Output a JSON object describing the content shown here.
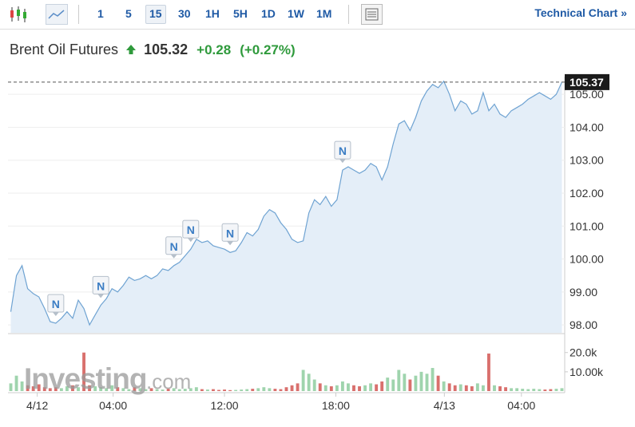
{
  "toolbar": {
    "intervals": [
      "1",
      "5",
      "15",
      "30",
      "1H",
      "5H",
      "1D",
      "1W",
      "1M"
    ],
    "selected_index": 2,
    "link": "Technical Chart »"
  },
  "header": {
    "name": "Brent Oil Futures",
    "price": "105.32",
    "change": "+0.28",
    "change_pct": "(+0.27%)"
  },
  "watermark": {
    "brand": "Investing",
    "suffix": ".com"
  },
  "chart_data": [
    {
      "type": "area",
      "color": "#6fa3d2",
      "fill": "#e4eef8",
      "grid": true,
      "values": [
        98.4,
        99.5,
        99.8,
        99.1,
        98.95,
        98.85,
        98.5,
        98.1,
        98.05,
        98.2,
        98.4,
        98.2,
        98.75,
        98.5,
        98.0,
        98.3,
        98.6,
        98.8,
        99.1,
        99.0,
        99.2,
        99.45,
        99.35,
        99.4,
        99.5,
        99.4,
        99.5,
        99.7,
        99.65,
        99.8,
        99.9,
        100.1,
        100.3,
        100.6,
        100.5,
        100.55,
        100.4,
        100.35,
        100.3,
        100.2,
        100.25,
        100.5,
        100.8,
        100.7,
        100.9,
        101.3,
        101.5,
        101.4,
        101.1,
        100.9,
        100.6,
        100.5,
        100.55,
        101.4,
        101.8,
        101.65,
        101.9,
        101.6,
        101.8,
        102.7,
        102.8,
        102.7,
        102.6,
        102.7,
        102.9,
        102.8,
        102.4,
        102.8,
        103.5,
        104.1,
        104.2,
        103.9,
        104.3,
        104.8,
        105.1,
        105.3,
        105.2,
        105.4,
        105.0,
        104.5,
        104.8,
        104.7,
        104.4,
        104.5,
        105.05,
        104.5,
        104.7,
        104.4,
        104.3,
        104.5,
        104.6,
        104.7,
        104.85,
        104.95,
        105.05,
        104.95,
        104.85,
        105.0,
        105.37
      ],
      "xlim": [
        -0.5,
        98.5
      ],
      "xticks": [
        {
          "value": 4.7,
          "label": "4/12"
        },
        {
          "value": 18.2,
          "label": "04:00"
        },
        {
          "value": 38,
          "label": "12:00"
        },
        {
          "value": 57.8,
          "label": "18:00"
        },
        {
          "value": 77.1,
          "label": "4/13"
        },
        {
          "value": 90.8,
          "label": "04:00"
        }
      ],
      "ylim": [
        97.76,
        105.44
      ],
      "yticks": [
        {
          "value": 98,
          "label": "98.00"
        },
        {
          "value": 99,
          "label": "99.00"
        },
        {
          "value": 100,
          "label": "100.00"
        },
        {
          "value": 101,
          "label": "101.00"
        },
        {
          "value": 102,
          "label": "102.00"
        },
        {
          "value": 103,
          "label": "103.00"
        },
        {
          "value": 104,
          "label": "104.00"
        },
        {
          "value": 105,
          "label": "105.00"
        }
      ],
      "annotations": [
        {
          "text": "N",
          "x": 8
        },
        {
          "text": "N",
          "x": 16
        },
        {
          "text": "N",
          "x": 29
        },
        {
          "text": "N",
          "x": 32
        },
        {
          "text": "N",
          "x": 39
        },
        {
          "text": "N",
          "x": 59
        }
      ]
    },
    {
      "type": "bar",
      "up_color": "#9fd4ad",
      "down_color": "#d9706d",
      "values": [
        4000,
        8000,
        5000,
        3000,
        2500,
        3500,
        2000,
        1500,
        2000,
        1500,
        2500,
        3000,
        2000,
        20000,
        3000,
        2500,
        2000,
        1500,
        3000,
        2000,
        1500,
        1000,
        2000,
        1500,
        1000,
        1500,
        1000,
        800,
        1200,
        1500,
        1000,
        1200,
        1500,
        2000,
        1000,
        800,
        1000,
        600,
        800,
        500,
        600,
        800,
        1000,
        1200,
        1500,
        2000,
        1500,
        1200,
        1000,
        2000,
        3000,
        4000,
        11000,
        9000,
        6000,
        4000,
        3000,
        2500,
        3000,
        5000,
        4000,
        3000,
        2500,
        3000,
        4000,
        3500,
        5000,
        7000,
        6000,
        11000,
        9000,
        6000,
        8000,
        10000,
        9000,
        12000,
        8000,
        5000,
        4000,
        3000,
        3500,
        3000,
        2500,
        4000,
        3000,
        19500,
        3000,
        2500,
        2000,
        1500,
        1500,
        1200,
        1000,
        1200,
        1000,
        800,
        1000,
        1200,
        1500
      ],
      "ylim": [
        0,
        29000
      ],
      "yticks": [
        {
          "value": 10000,
          "label": "10.00k"
        },
        {
          "value": 20000,
          "label": "20.0k"
        }
      ]
    }
  ]
}
